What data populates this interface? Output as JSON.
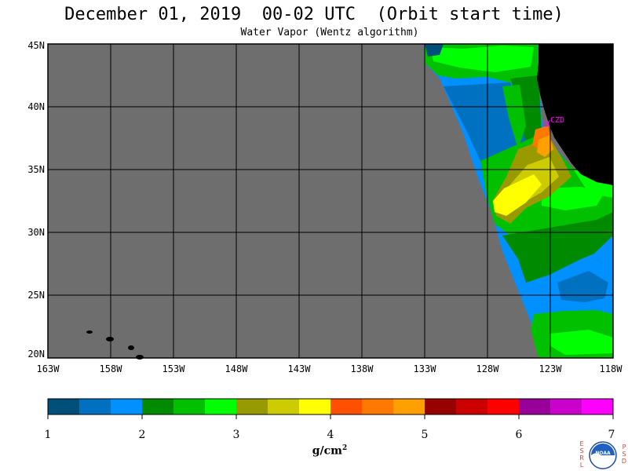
{
  "title": "December 01, 2019  00-02 UTC  (Orbit start time)",
  "subtitle": "Water Vapor (Wentz algorithm)",
  "map": {
    "lat_range": [
      20,
      45
    ],
    "lon_range": [
      -163,
      -118
    ],
    "lat_labels": [
      "45N",
      "40N",
      "35N",
      "30N",
      "25N",
      "20N"
    ],
    "lon_labels": [
      "163W",
      "158W",
      "153W",
      "148W",
      "143W",
      "138W",
      "133W",
      "128W",
      "123W",
      "118W"
    ],
    "station_label": "CZD",
    "colors": {
      "no_data": "#6e6e6e",
      "land": "#000000",
      "grid": "#000000",
      "station": "#ff00ff"
    }
  },
  "colorbar": {
    "ticks": [
      "1",
      "2",
      "3",
      "4",
      "5",
      "6",
      "7"
    ],
    "unit_base": "g/cm",
    "unit_sup": "2",
    "colors": [
      "#004f7a",
      "#0070c0",
      "#0090ff",
      "#008a00",
      "#00c000",
      "#00ff00",
      "#999900",
      "#cccc00",
      "#ffff00",
      "#ff5000",
      "#ff7800",
      "#ffa000",
      "#990000",
      "#cc0000",
      "#ff0000",
      "#990099",
      "#cc00cc",
      "#ff00ff"
    ]
  },
  "logo": {
    "left_letters": [
      "E",
      "S",
      "R",
      "L"
    ],
    "right_letters": [
      "P",
      "S",
      "D"
    ],
    "center_text": "NOAA"
  }
}
